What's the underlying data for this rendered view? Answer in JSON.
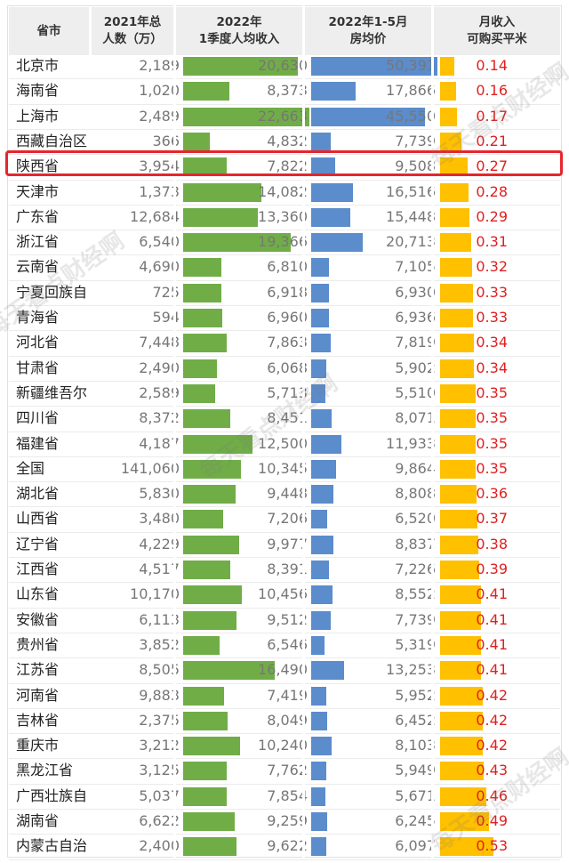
{
  "headers": {
    "region": "省市",
    "pop_line1": "2021年总",
    "pop_line2": "人数（万）",
    "income_line1": "2022年",
    "income_line2": "1季度人均收入",
    "price_line1": "2022年1-5月",
    "price_line2": "房均价",
    "sqm_line1": "月收入",
    "sqm_line2": "可购买平米"
  },
  "highlighted_region": "陕西省",
  "watermark": "每天看点财经啊",
  "colors": {
    "income_bar": "#70ad47",
    "price_bar": "#5b8ccc",
    "sqm_bar": "#ffc000",
    "sqm_text": "#e02020",
    "highlight": "#e5262c"
  },
  "chart_data": {
    "type": "table",
    "columns": [
      "省市",
      "2021年总人数（万）",
      "2022年1季度人均收入",
      "2022年1-5月房均价",
      "月收入可购买平米"
    ],
    "income_max": 22663,
    "price_max": 50391,
    "sqm_max": 0.53,
    "rows": [
      {
        "region": "北京市",
        "population": "2,189",
        "income": 20630,
        "income_label": "20,630",
        "price": 50391,
        "price_label": "50,391",
        "sqm": 0.14,
        "sqm_label": "0.14"
      },
      {
        "region": "海南省",
        "population": "1,020",
        "income": 8373,
        "income_label": "8,373",
        "price": 17866,
        "price_label": "17,866",
        "sqm": 0.16,
        "sqm_label": "0.16"
      },
      {
        "region": "上海市",
        "population": "2,489",
        "income": 22663,
        "income_label": "22,663",
        "price": 45550,
        "price_label": "45,550",
        "sqm": 0.17,
        "sqm_label": "0.17"
      },
      {
        "region": "西藏自治区",
        "population": "366",
        "income": 4832,
        "income_label": "4,832",
        "price": 7739,
        "price_label": "7,739",
        "sqm": 0.21,
        "sqm_label": "0.21"
      },
      {
        "region": "陕西省",
        "population": "3,954",
        "income": 7822,
        "income_label": "7,822",
        "price": 9508,
        "price_label": "9,508",
        "sqm": 0.27,
        "sqm_label": "0.27"
      },
      {
        "region": "天津市",
        "population": "1,373",
        "income": 14082,
        "income_label": "14,082",
        "price": 16516,
        "price_label": "16,516",
        "sqm": 0.28,
        "sqm_label": "0.28"
      },
      {
        "region": "广东省",
        "population": "12,684",
        "income": 13360,
        "income_label": "13,360",
        "price": 15448,
        "price_label": "15,448",
        "sqm": 0.29,
        "sqm_label": "0.29"
      },
      {
        "region": "浙江省",
        "population": "6,540",
        "income": 19366,
        "income_label": "19,366",
        "price": 20713,
        "price_label": "20,713",
        "sqm": 0.31,
        "sqm_label": "0.31"
      },
      {
        "region": "云南省",
        "population": "4,690",
        "income": 6810,
        "income_label": "6,810",
        "price": 7105,
        "price_label": "7,105",
        "sqm": 0.32,
        "sqm_label": "0.32"
      },
      {
        "region": "宁夏回族自",
        "population": "725",
        "income": 6918,
        "income_label": "6,918",
        "price": 6930,
        "price_label": "6,930",
        "sqm": 0.33,
        "sqm_label": "0.33"
      },
      {
        "region": "青海省",
        "population": "594",
        "income": 6960,
        "income_label": "6,960",
        "price": 6936,
        "price_label": "6,936",
        "sqm": 0.33,
        "sqm_label": "0.33"
      },
      {
        "region": "河北省",
        "population": "7,448",
        "income": 7863,
        "income_label": "7,863",
        "price": 7819,
        "price_label": "7,819",
        "sqm": 0.34,
        "sqm_label": "0.34"
      },
      {
        "region": "甘肃省",
        "population": "2,490",
        "income": 6068,
        "income_label": "6,068",
        "price": 5902,
        "price_label": "5,902",
        "sqm": 0.34,
        "sqm_label": "0.34"
      },
      {
        "region": "新疆维吾尔",
        "population": "2,589",
        "income": 5713,
        "income_label": "5,713",
        "price": 5510,
        "price_label": "5,510",
        "sqm": 0.35,
        "sqm_label": "0.35"
      },
      {
        "region": "四川省",
        "population": "8,372",
        "income": 8451,
        "income_label": "8,451",
        "price": 8071,
        "price_label": "8,071",
        "sqm": 0.35,
        "sqm_label": "0.35"
      },
      {
        "region": "福建省",
        "population": "4,187",
        "income": 12500,
        "income_label": "12,500",
        "price": 11933,
        "price_label": "11,933",
        "sqm": 0.35,
        "sqm_label": "0.35"
      },
      {
        "region": "全国",
        "population": "141,060",
        "income": 10345,
        "income_label": "10,345",
        "price": 9864,
        "price_label": "9,864",
        "sqm": 0.35,
        "sqm_label": "0.35"
      },
      {
        "region": "湖北省",
        "population": "5,830",
        "income": 9448,
        "income_label": "9,448",
        "price": 8808,
        "price_label": "8,808",
        "sqm": 0.36,
        "sqm_label": "0.36"
      },
      {
        "region": "山西省",
        "population": "3,480",
        "income": 7206,
        "income_label": "7,206",
        "price": 6520,
        "price_label": "6,520",
        "sqm": 0.37,
        "sqm_label": "0.37"
      },
      {
        "region": "辽宁省",
        "population": "4,229",
        "income": 9977,
        "income_label": "9,977",
        "price": 8837,
        "price_label": "8,837",
        "sqm": 0.38,
        "sqm_label": "0.38"
      },
      {
        "region": "江西省",
        "population": "4,517",
        "income": 8391,
        "income_label": "8,391",
        "price": 7226,
        "price_label": "7,226",
        "sqm": 0.39,
        "sqm_label": "0.39"
      },
      {
        "region": "山东省",
        "population": "10,170",
        "income": 10456,
        "income_label": "10,456",
        "price": 8552,
        "price_label": "8,552",
        "sqm": 0.41,
        "sqm_label": "0.41"
      },
      {
        "region": "安徽省",
        "population": "6,113",
        "income": 9512,
        "income_label": "9,512",
        "price": 7739,
        "price_label": "7,739",
        "sqm": 0.41,
        "sqm_label": "0.41"
      },
      {
        "region": "贵州省",
        "population": "3,852",
        "income": 6546,
        "income_label": "6,546",
        "price": 5319,
        "price_label": "5,319",
        "sqm": 0.41,
        "sqm_label": "0.41"
      },
      {
        "region": "江苏省",
        "population": "8,505",
        "income": 16490,
        "income_label": "16,490",
        "price": 13253,
        "price_label": "13,253",
        "sqm": 0.41,
        "sqm_label": "0.41"
      },
      {
        "region": "河南省",
        "population": "9,883",
        "income": 7419,
        "income_label": "7,419",
        "price": 5952,
        "price_label": "5,952",
        "sqm": 0.42,
        "sqm_label": "0.42"
      },
      {
        "region": "吉林省",
        "population": "2,375",
        "income": 8049,
        "income_label": "8,049",
        "price": 6452,
        "price_label": "6,452",
        "sqm": 0.42,
        "sqm_label": "0.42"
      },
      {
        "region": "重庆市",
        "population": "3,212",
        "income": 10240,
        "income_label": "10,240",
        "price": 8103,
        "price_label": "8,103",
        "sqm": 0.42,
        "sqm_label": "0.42"
      },
      {
        "region": "黑龙江省",
        "population": "3,125",
        "income": 7762,
        "income_label": "7,762",
        "price": 5949,
        "price_label": "5,949",
        "sqm": 0.43,
        "sqm_label": "0.43"
      },
      {
        "region": "广西壮族自",
        "population": "5,037",
        "income": 7854,
        "income_label": "7,854",
        "price": 5671,
        "price_label": "5,671",
        "sqm": 0.46,
        "sqm_label": "0.46"
      },
      {
        "region": "湖南省",
        "population": "6,622",
        "income": 9259,
        "income_label": "9,259",
        "price": 6245,
        "price_label": "6,245",
        "sqm": 0.49,
        "sqm_label": "0.49"
      },
      {
        "region": "内蒙古自治",
        "population": "2,400",
        "income": 9622,
        "income_label": "9,622",
        "price": 6097,
        "price_label": "6,097",
        "sqm": 0.53,
        "sqm_label": "0.53"
      }
    ]
  }
}
